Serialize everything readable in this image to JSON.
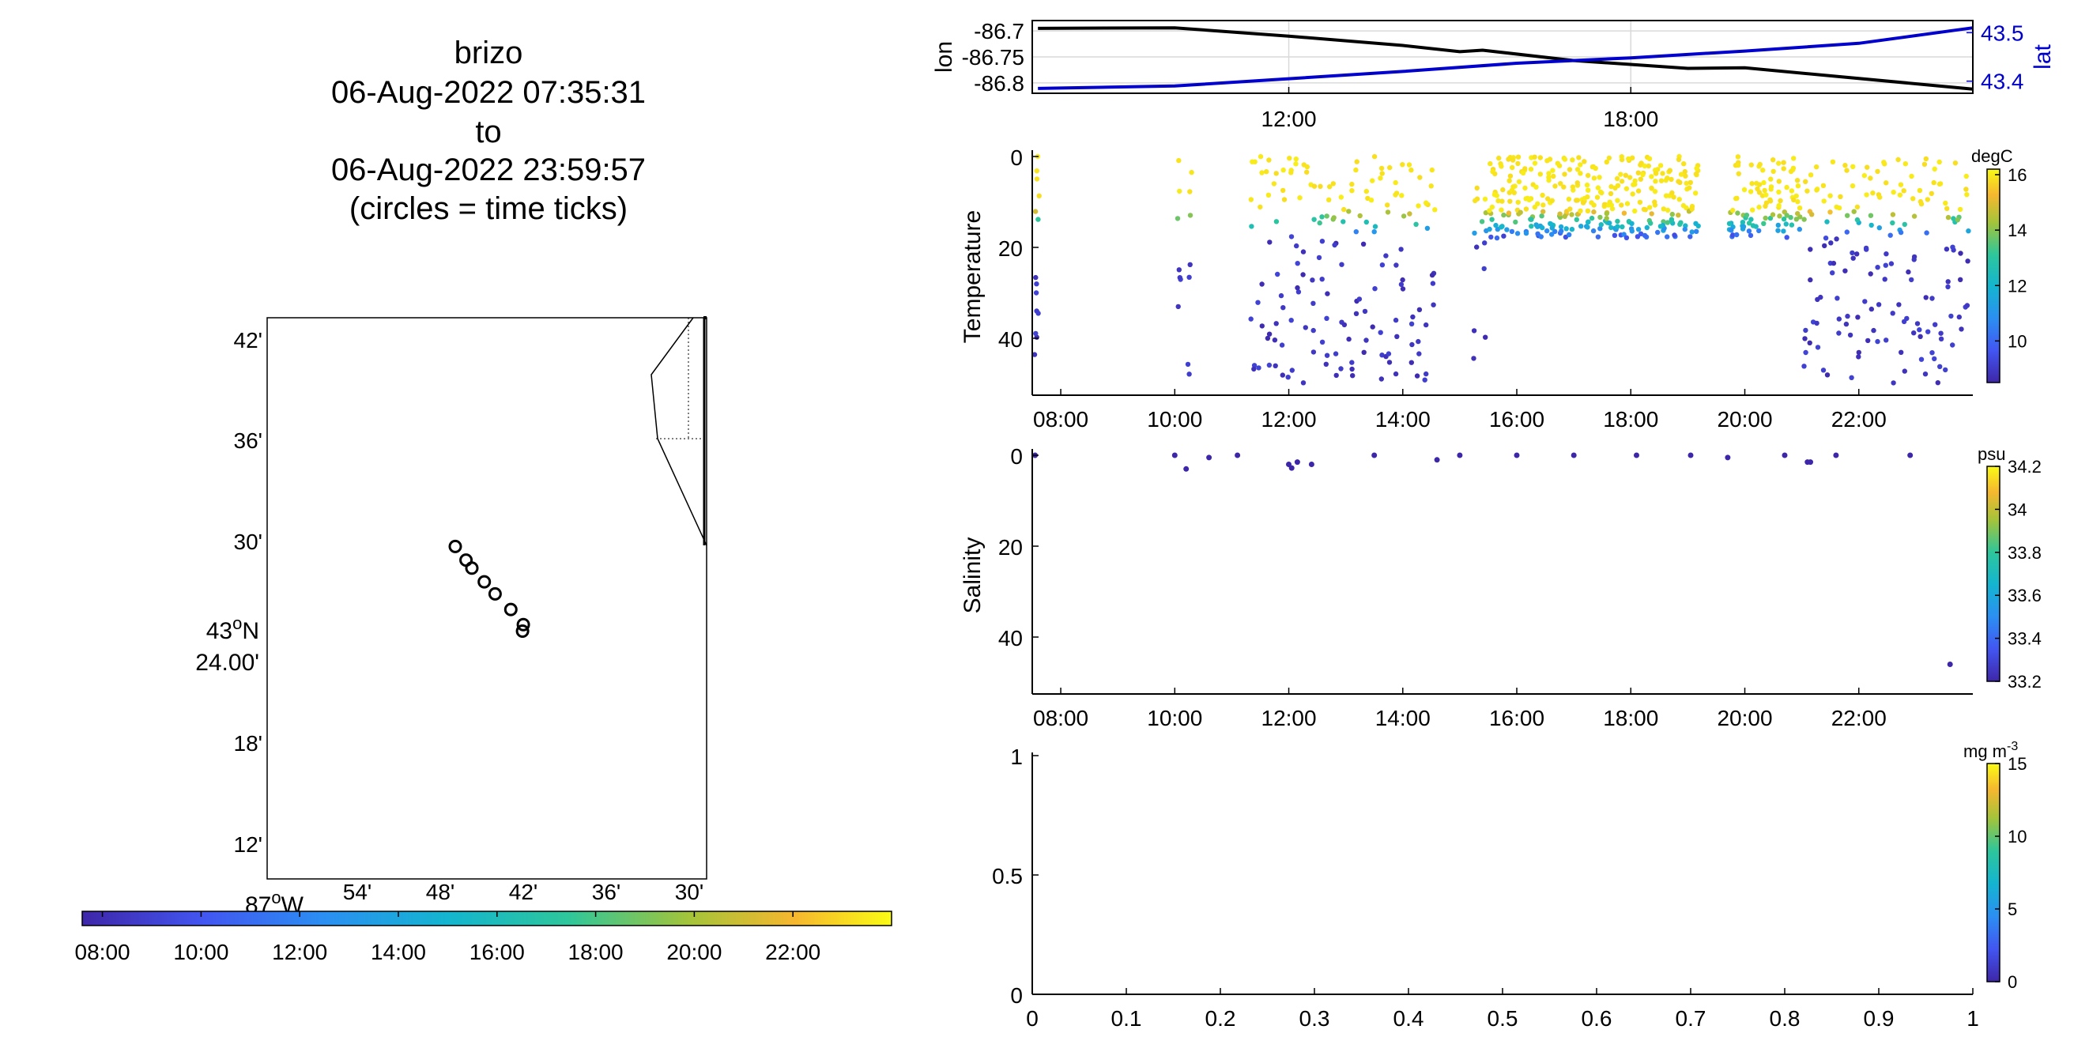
{
  "title_block": {
    "lines": [
      "brizo",
      "06-Aug-2022 07:35:31",
      "to",
      "06-Aug-2022 23:59:57",
      "(circles = time ticks)"
    ]
  },
  "map": {
    "lat_ticks": [
      "42'",
      "36'",
      "30'",
      "18'",
      "12'"
    ],
    "lat_main_label": "43",
    "lat_main_sup": "o",
    "lat_main_suffix": "N",
    "lat_main_minutes": "24.00'",
    "lon_main_label": "87",
    "lon_main_sup": "o",
    "lon_main_suffix": "W",
    "lon_ticks": [
      "54'",
      "48'",
      "42'",
      "36'",
      "30'"
    ],
    "track_lon": [
      -86.8,
      -86.787,
      -86.78,
      -86.765,
      -86.752,
      -86.733,
      -86.718,
      -86.719
    ],
    "track_lat": [
      43.493,
      43.4795,
      43.4715,
      43.458,
      43.446,
      43.4305,
      43.4155,
      43.409
    ],
    "time_colorbar_ticks": [
      "08:00",
      "10:00",
      "12:00",
      "14:00",
      "16:00",
      "18:00",
      "20:00",
      "22:00"
    ]
  },
  "chart_data": [
    {
      "type": "line",
      "panel": "position",
      "xlabel": "",
      "ylabel": "lon",
      "ylabel_right": "lat",
      "x_ticks": [
        "12:00",
        "18:00"
      ],
      "y_ticks_left": [
        "-86.7",
        "-86.75",
        "-86.8"
      ],
      "y_ticks_right": [
        "43.5",
        "43.4"
      ],
      "ylim_left": [
        -86.82,
        -86.68
      ],
      "ylim_right": [
        43.375,
        43.525
      ],
      "xlim": [
        7.5,
        24.0
      ],
      "series": [
        {
          "name": "lon",
          "color": "#000000",
          "x": [
            7.6,
            10.0,
            12.0,
            14.0,
            15.0,
            15.4,
            17.0,
            19.0,
            20.0,
            24.0
          ],
          "values": [
            -86.695,
            -86.694,
            -86.71,
            -86.728,
            -86.74,
            -86.737,
            -86.757,
            -86.772,
            -86.771,
            -86.812
          ]
        },
        {
          "name": "lat",
          "color": "#0000cc",
          "x": [
            7.6,
            10.0,
            12.0,
            14.0,
            16.0,
            18.0,
            20.0,
            22.0,
            24.0
          ],
          "values": [
            43.385,
            43.39,
            43.405,
            43.42,
            43.437,
            43.448,
            43.462,
            43.478,
            43.51
          ]
        }
      ]
    },
    {
      "type": "scatter",
      "panel": "temperature",
      "ylabel": "Temperature",
      "colorbar_unit": "degC",
      "colorbar_ticks": [
        "16",
        "14",
        "12",
        "10"
      ],
      "colorbar_range": [
        8.5,
        16.2
      ],
      "x_ticks": [
        "08:00",
        "10:00",
        "12:00",
        "14:00",
        "16:00",
        "18:00",
        "20:00",
        "22:00"
      ],
      "y_ticks": [
        "0",
        "20",
        "40"
      ],
      "xlim": [
        7.5,
        24.0
      ],
      "ylim": [
        52,
        0
      ]
    },
    {
      "type": "scatter",
      "panel": "salinity",
      "ylabel": "Salinity",
      "colorbar_unit": "psu",
      "colorbar_ticks": [
        "34.2",
        "34",
        "33.8",
        "33.6",
        "33.4",
        "33.2"
      ],
      "colorbar_range": [
        33.2,
        34.2
      ],
      "x_ticks": [
        "08:00",
        "10:00",
        "12:00",
        "14:00",
        "16:00",
        "18:00",
        "20:00",
        "22:00"
      ],
      "y_ticks": [
        "0",
        "20",
        "40"
      ],
      "xlim": [
        7.5,
        24.0
      ],
      "ylim": [
        52,
        0
      ],
      "points": [
        {
          "x": 7.55,
          "y": 0
        },
        {
          "x": 10.0,
          "y": 0
        },
        {
          "x": 10.2,
          "y": 3
        },
        {
          "x": 10.6,
          "y": 0.5
        },
        {
          "x": 11.1,
          "y": 0
        },
        {
          "x": 12.0,
          "y": 2
        },
        {
          "x": 12.05,
          "y": 2.8
        },
        {
          "x": 12.15,
          "y": 1.5
        },
        {
          "x": 12.4,
          "y": 2
        },
        {
          "x": 13.5,
          "y": 0
        },
        {
          "x": 14.6,
          "y": 1
        },
        {
          "x": 15.0,
          "y": 0
        },
        {
          "x": 16.0,
          "y": 0
        },
        {
          "x": 17.0,
          "y": 0
        },
        {
          "x": 18.1,
          "y": 0
        },
        {
          "x": 19.05,
          "y": 0
        },
        {
          "x": 19.7,
          "y": 0.5
        },
        {
          "x": 20.7,
          "y": 0
        },
        {
          "x": 21.1,
          "y": 1.5
        },
        {
          "x": 21.15,
          "y": 1.5
        },
        {
          "x": 21.6,
          "y": 0
        },
        {
          "x": 22.9,
          "y": 0
        },
        {
          "x": 23.6,
          "y": 46
        }
      ]
    },
    {
      "type": "scatter",
      "panel": "chlorophyll",
      "colorbar_unit": "mg m",
      "colorbar_unit_sup": "-3",
      "colorbar_ticks": [
        "15",
        "10",
        "5",
        "0"
      ],
      "colorbar_range": [
        0,
        15
      ],
      "x_ticks": [
        "0",
        "0.1",
        "0.2",
        "0.3",
        "0.4",
        "0.5",
        "0.6",
        "0.7",
        "0.8",
        "0.9",
        "1"
      ],
      "y_ticks": [
        "1",
        "0.5",
        "0"
      ],
      "xlim": [
        0,
        1
      ],
      "ylim": [
        0,
        1
      ],
      "points": []
    }
  ]
}
